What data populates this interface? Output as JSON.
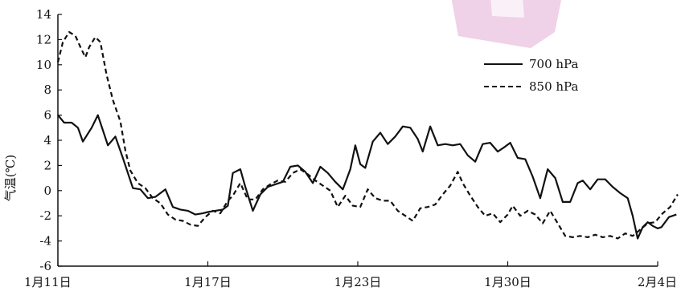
{
  "chart_data": {
    "type": "line",
    "title": "",
    "xlabel": "",
    "ylabel": "气温(℃)",
    "ylim": [
      -6,
      14
    ],
    "yticks": [
      -6,
      -4,
      -2,
      0,
      2,
      4,
      6,
      8,
      10,
      12,
      14
    ],
    "xlim": [
      0,
      24
    ],
    "xticks": [
      {
        "x": 0,
        "label": "1月11日"
      },
      {
        "x": 6,
        "label": "1月17日"
      },
      {
        "x": 12,
        "label": "1月23日"
      },
      {
        "x": 18,
        "label": "1月30日"
      },
      {
        "x": 24,
        "label": "2月4日"
      }
    ],
    "legend_position": "top-right",
    "series": [
      {
        "name": "700 hPa",
        "style": "solid",
        "points": [
          [
            0.0,
            6.0
          ],
          [
            0.25,
            5.4
          ],
          [
            0.55,
            5.4
          ],
          [
            0.8,
            5.0
          ],
          [
            1.0,
            3.9
          ],
          [
            1.35,
            5.0
          ],
          [
            1.6,
            6.0
          ],
          [
            2.0,
            3.6
          ],
          [
            2.3,
            4.3
          ],
          [
            2.6,
            2.6
          ],
          [
            3.0,
            0.2
          ],
          [
            3.3,
            0.1
          ],
          [
            3.6,
            -0.6
          ],
          [
            3.9,
            -0.5
          ],
          [
            4.3,
            0.1
          ],
          [
            4.6,
            -1.3
          ],
          [
            4.9,
            -1.5
          ],
          [
            5.2,
            -1.6
          ],
          [
            5.5,
            -1.9
          ],
          [
            5.8,
            -1.8
          ],
          [
            6.0,
            -1.7
          ],
          [
            6.3,
            -1.6
          ],
          [
            6.6,
            -1.5
          ],
          [
            6.8,
            -1.2
          ],
          [
            7.0,
            1.4
          ],
          [
            7.3,
            1.7
          ],
          [
            7.5,
            0.3
          ],
          [
            7.8,
            -1.6
          ],
          [
            8.1,
            -0.3
          ],
          [
            8.4,
            0.3
          ],
          [
            8.7,
            0.5
          ],
          [
            9.0,
            0.7
          ],
          [
            9.3,
            1.9
          ],
          [
            9.6,
            2.0
          ],
          [
            9.9,
            1.5
          ],
          [
            10.2,
            0.6
          ],
          [
            10.5,
            1.9
          ],
          [
            10.8,
            1.4
          ],
          [
            11.1,
            0.7
          ],
          [
            11.4,
            0.1
          ],
          [
            11.7,
            1.7
          ],
          [
            11.9,
            3.6
          ],
          [
            12.1,
            2.1
          ],
          [
            12.3,
            1.8
          ],
          [
            12.6,
            3.9
          ],
          [
            12.9,
            4.6
          ],
          [
            13.2,
            3.7
          ],
          [
            13.5,
            4.3
          ],
          [
            13.8,
            5.1
          ],
          [
            14.1,
            5.0
          ],
          [
            14.4,
            4.1
          ],
          [
            14.6,
            3.1
          ],
          [
            14.9,
            5.1
          ],
          [
            15.2,
            3.6
          ],
          [
            15.5,
            3.7
          ],
          [
            15.8,
            3.6
          ],
          [
            16.1,
            3.7
          ],
          [
            16.4,
            2.8
          ],
          [
            16.7,
            2.3
          ],
          [
            17.0,
            3.7
          ],
          [
            17.3,
            3.8
          ],
          [
            17.6,
            3.1
          ],
          [
            17.9,
            3.5
          ],
          [
            18.1,
            3.8
          ],
          [
            18.4,
            2.6
          ],
          [
            18.7,
            2.5
          ],
          [
            19.0,
            1.1
          ],
          [
            19.3,
            -0.6
          ],
          [
            19.6,
            1.7
          ],
          [
            19.9,
            1.0
          ],
          [
            20.2,
            -0.9
          ],
          [
            20.5,
            -0.9
          ],
          [
            20.8,
            0.6
          ],
          [
            21.0,
            0.8
          ],
          [
            21.3,
            0.1
          ],
          [
            21.6,
            0.9
          ],
          [
            21.9,
            0.9
          ],
          [
            22.2,
            0.3
          ],
          [
            22.5,
            -0.2
          ],
          [
            22.8,
            -0.6
          ],
          [
            23.0,
            -2.0
          ],
          [
            23.2,
            -3.8
          ],
          [
            23.4,
            -2.9
          ],
          [
            23.6,
            -2.5
          ],
          [
            23.8,
            -2.8
          ],
          [
            24.0,
            -3.0
          ],
          [
            24.15,
            -2.9
          ],
          [
            24.3,
            -2.5
          ],
          [
            24.45,
            -2.1
          ],
          [
            24.6,
            -2.0
          ],
          [
            24.75,
            -1.9
          ]
        ]
      },
      {
        "name": "850 hPa",
        "style": "dashed",
        "points": [
          [
            0.0,
            10.2
          ],
          [
            0.2,
            11.8
          ],
          [
            0.45,
            12.6
          ],
          [
            0.7,
            12.3
          ],
          [
            0.95,
            11.2
          ],
          [
            1.1,
            10.6
          ],
          [
            1.25,
            11.4
          ],
          [
            1.5,
            12.2
          ],
          [
            1.7,
            11.8
          ],
          [
            1.95,
            9.2
          ],
          [
            2.2,
            7.2
          ],
          [
            2.5,
            5.5
          ],
          [
            2.7,
            3.2
          ],
          [
            2.9,
            1.6
          ],
          [
            3.2,
            0.6
          ],
          [
            3.5,
            0.2
          ],
          [
            3.8,
            -0.6
          ],
          [
            4.1,
            -1.0
          ],
          [
            4.4,
            -1.9
          ],
          [
            4.7,
            -2.3
          ],
          [
            5.0,
            -2.4
          ],
          [
            5.3,
            -2.7
          ],
          [
            5.6,
            -2.8
          ],
          [
            5.9,
            -2.1
          ],
          [
            6.2,
            -1.6
          ],
          [
            6.5,
            -1.8
          ],
          [
            6.8,
            -0.8
          ],
          [
            7.0,
            -0.4
          ],
          [
            7.3,
            0.6
          ],
          [
            7.6,
            -0.7
          ],
          [
            7.9,
            -0.7
          ],
          [
            8.2,
            0.1
          ],
          [
            8.5,
            0.5
          ],
          [
            8.8,
            0.8
          ],
          [
            9.1,
            0.7
          ],
          [
            9.4,
            1.4
          ],
          [
            9.7,
            1.7
          ],
          [
            10.0,
            1.3
          ],
          [
            10.3,
            0.8
          ],
          [
            10.6,
            0.4
          ],
          [
            10.9,
            0.0
          ],
          [
            11.2,
            -1.3
          ],
          [
            11.5,
            -0.4
          ],
          [
            11.8,
            -1.2
          ],
          [
            12.1,
            -1.3
          ],
          [
            12.4,
            0.1
          ],
          [
            12.7,
            -0.6
          ],
          [
            13.0,
            -0.8
          ],
          [
            13.3,
            -0.8
          ],
          [
            13.6,
            -1.6
          ],
          [
            13.9,
            -2.0
          ],
          [
            14.2,
            -2.4
          ],
          [
            14.5,
            -1.4
          ],
          [
            14.8,
            -1.3
          ],
          [
            15.1,
            -1.1
          ],
          [
            15.4,
            -0.3
          ],
          [
            15.7,
            0.4
          ],
          [
            16.0,
            1.5
          ],
          [
            16.2,
            0.6
          ],
          [
            16.5,
            -0.4
          ],
          [
            16.8,
            -1.3
          ],
          [
            17.1,
            -2.0
          ],
          [
            17.4,
            -1.8
          ],
          [
            17.7,
            -2.5
          ],
          [
            18.0,
            -1.9
          ],
          [
            18.2,
            -1.2
          ],
          [
            18.5,
            -2.0
          ],
          [
            18.8,
            -1.6
          ],
          [
            19.1,
            -1.9
          ],
          [
            19.4,
            -2.6
          ],
          [
            19.7,
            -1.6
          ],
          [
            20.0,
            -2.6
          ],
          [
            20.3,
            -3.6
          ],
          [
            20.6,
            -3.7
          ],
          [
            20.9,
            -3.6
          ],
          [
            21.2,
            -3.7
          ],
          [
            21.5,
            -3.5
          ],
          [
            21.8,
            -3.7
          ],
          [
            22.1,
            -3.6
          ],
          [
            22.4,
            -3.8
          ],
          [
            22.7,
            -3.4
          ],
          [
            23.0,
            -3.6
          ],
          [
            23.3,
            -3.1
          ],
          [
            23.6,
            -2.6
          ],
          [
            23.9,
            -2.5
          ],
          [
            24.2,
            -1.8
          ],
          [
            24.5,
            -1.3
          ],
          [
            24.8,
            -0.3
          ]
        ]
      }
    ]
  }
}
